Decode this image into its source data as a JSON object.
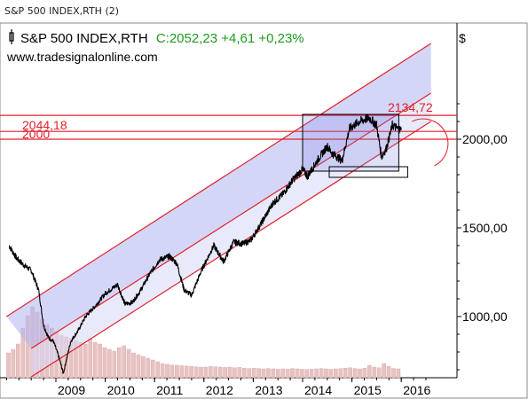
{
  "window": {
    "title": "S&P 500 INDEX,RTH (2)"
  },
  "header": {
    "symbol": "S&P 500 INDEX,RTH",
    "quote": "C:2052,23 +4,61 +0,23%",
    "website": "www.tradesignalonline.com",
    "currency": "$",
    "colors": {
      "symbol": "#000000",
      "quote": "#1e9a1e",
      "price": "#000000",
      "levels": "#e0202a",
      "channel": "#b0b4f2"
    }
  },
  "chart_data": {
    "type": "line",
    "ylim": [
      600,
      2250
    ],
    "yticks": [
      {
        "value": 1000,
        "label": "1000,00"
      },
      {
        "value": 1500,
        "label": "1500,00"
      },
      {
        "value": 2000,
        "label": "2000,00"
      }
    ],
    "xticks": [
      {
        "value": 2009.0,
        "label": "2009"
      },
      {
        "value": 2010.0,
        "label": "2010"
      },
      {
        "value": 2011.0,
        "label": "2011"
      },
      {
        "value": 2012.0,
        "label": "2012"
      },
      {
        "value": 2013.0,
        "label": "2013"
      },
      {
        "value": 2014.0,
        "label": "2014"
      },
      {
        "value": 2015.0,
        "label": "2015"
      },
      {
        "value": 2016.0,
        "label": "2016"
      }
    ],
    "series": [
      {
        "points": [
          [
            2008.05,
            1400
          ],
          [
            2008.2,
            1330
          ],
          [
            2008.35,
            1290
          ],
          [
            2008.5,
            1260
          ],
          [
            2008.65,
            1150
          ],
          [
            2008.75,
            950
          ],
          [
            2008.85,
            880
          ],
          [
            2008.95,
            860
          ],
          [
            2009.05,
            780
          ],
          [
            2009.15,
            680
          ],
          [
            2009.3,
            860
          ],
          [
            2009.45,
            920
          ],
          [
            2009.6,
            1000
          ],
          [
            2009.8,
            1060
          ],
          [
            2010.0,
            1130
          ],
          [
            2010.25,
            1180
          ],
          [
            2010.4,
            1070
          ],
          [
            2010.55,
            1080
          ],
          [
            2010.7,
            1140
          ],
          [
            2010.9,
            1240
          ],
          [
            2011.1,
            1320
          ],
          [
            2011.3,
            1340
          ],
          [
            2011.45,
            1300
          ],
          [
            2011.6,
            1150
          ],
          [
            2011.75,
            1120
          ],
          [
            2011.95,
            1260
          ],
          [
            2012.2,
            1400
          ],
          [
            2012.4,
            1310
          ],
          [
            2012.6,
            1420
          ],
          [
            2012.8,
            1410
          ],
          [
            2012.95,
            1430
          ],
          [
            2013.15,
            1520
          ],
          [
            2013.4,
            1640
          ],
          [
            2013.6,
            1690
          ],
          [
            2013.8,
            1770
          ],
          [
            2014.0,
            1830
          ],
          [
            2014.1,
            1790
          ],
          [
            2014.3,
            1880
          ],
          [
            2014.5,
            1960
          ],
          [
            2014.6,
            1920
          ],
          [
            2014.8,
            1880
          ],
          [
            2014.95,
            2060
          ],
          [
            2015.15,
            2100
          ],
          [
            2015.35,
            2120
          ],
          [
            2015.5,
            2080
          ],
          [
            2015.6,
            1900
          ],
          [
            2015.7,
            1950
          ],
          [
            2015.82,
            2080
          ],
          [
            2015.92,
            2060
          ],
          [
            2016.0,
            2052
          ]
        ]
      }
    ],
    "channel": {
      "upper": [
        [
          2008.0,
          1000
        ],
        [
          2016.6,
          2540
        ]
      ],
      "mid": [
        [
          2008.5,
          820
        ],
        [
          2016.6,
          2260
        ]
      ],
      "lower": [
        [
          2008.5,
          660
        ],
        [
          2016.6,
          2100
        ]
      ]
    },
    "levels": [
      {
        "value": 2134.72,
        "label": "2134,72"
      },
      {
        "value": 2044.18,
        "label": "2044,18"
      },
      {
        "value": 2000,
        "label": "2000"
      }
    ],
    "consolidation_box": {
      "x": [
        2014.0,
        2015.95
      ],
      "y": [
        1820,
        2140
      ]
    },
    "volume_bars": [
      70,
      80,
      95,
      140,
      175,
      200,
      185,
      165,
      150,
      140,
      130,
      120,
      115,
      110,
      105,
      100,
      95,
      110,
      100,
      95,
      85,
      80,
      75,
      85,
      90,
      80,
      70,
      65,
      60,
      55,
      50,
      45,
      40,
      38,
      36,
      35,
      34,
      33,
      32,
      31,
      30,
      30,
      32,
      31,
      30,
      29,
      30,
      28,
      29,
      27,
      26,
      27,
      26,
      25,
      26,
      25,
      24,
      25,
      24,
      26,
      25,
      24,
      23,
      24,
      25,
      26,
      25,
      24,
      25,
      26,
      27,
      28,
      26,
      25,
      27,
      35,
      30,
      28,
      40,
      32,
      26,
      25
    ]
  }
}
